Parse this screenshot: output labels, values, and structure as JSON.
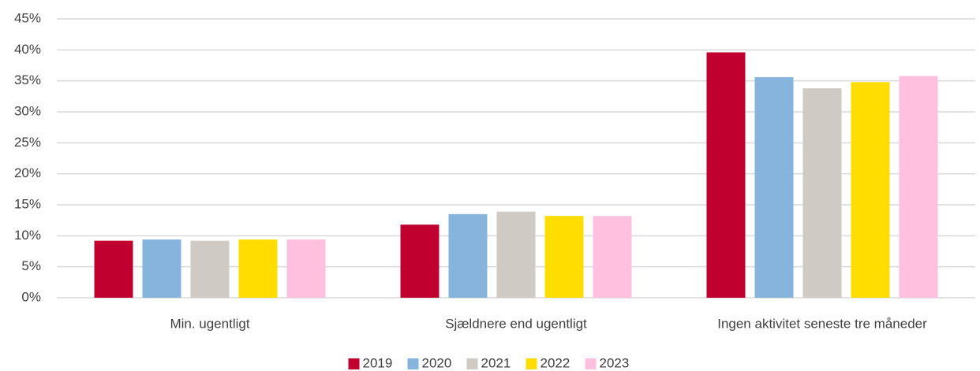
{
  "chart_data": {
    "type": "bar",
    "categories": [
      "Min. ugentligt",
      "Sjældnere end ugentligt",
      "Ingen aktivitet seneste tre måneder"
    ],
    "series": [
      {
        "name": "2019",
        "color": "#c0002e",
        "values": [
          9.2,
          11.8,
          39.6
        ]
      },
      {
        "name": "2020",
        "color": "#86b4dc",
        "values": [
          9.4,
          13.5,
          35.6
        ]
      },
      {
        "name": "2021",
        "color": "#cfcbc4",
        "values": [
          9.2,
          13.9,
          33.8
        ]
      },
      {
        "name": "2022",
        "color": "#ffdd00",
        "values": [
          9.4,
          13.2,
          34.8
        ]
      },
      {
        "name": "2023",
        "color": "#ffc0e0",
        "values": [
          9.4,
          13.2,
          35.8
        ]
      }
    ],
    "ylim": [
      0,
      45
    ],
    "yticks": [
      {
        "value": 0,
        "label": "0%"
      },
      {
        "value": 5,
        "label": "5%"
      },
      {
        "value": 10,
        "label": "10%"
      },
      {
        "value": 15,
        "label": "15%"
      },
      {
        "value": 20,
        "label": "20%"
      },
      {
        "value": 25,
        "label": "25%"
      },
      {
        "value": 30,
        "label": "30%"
      },
      {
        "value": 35,
        "label": "35%"
      },
      {
        "value": 40,
        "label": "40%"
      },
      {
        "value": 45,
        "label": "45%"
      }
    ],
    "grid": true,
    "legend": "bottom"
  }
}
